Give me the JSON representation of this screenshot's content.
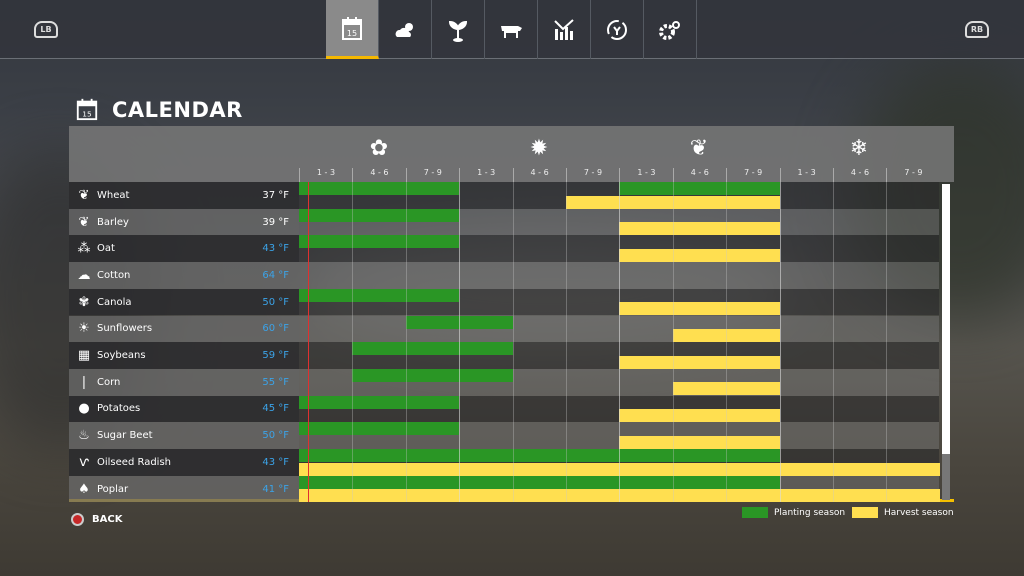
{
  "topbar": {
    "left_button": "LB",
    "right_button": "RB",
    "tabs": [
      {
        "icon": "calendar-icon",
        "label": "15",
        "active": true
      },
      {
        "icon": "weather-icon"
      },
      {
        "icon": "crops-icon"
      },
      {
        "icon": "animals-icon"
      },
      {
        "icon": "statistics-icon"
      },
      {
        "icon": "cycle-icon"
      },
      {
        "icon": "settings-icon"
      }
    ]
  },
  "page": {
    "title": "CALENDAR",
    "calendar_day": "15"
  },
  "seasons": [
    {
      "name": "spring",
      "icon": "flower-icon"
    },
    {
      "name": "summer",
      "icon": "sun-icon"
    },
    {
      "name": "autumn",
      "icon": "leaf-icon"
    },
    {
      "name": "winter",
      "icon": "snowflake-icon"
    }
  ],
  "periods": [
    "1 - 3",
    "4 - 6",
    "7 - 9",
    "1 - 3",
    "4 - 6",
    "7 - 9",
    "1 - 3",
    "4 - 6",
    "7 - 9",
    "1 - 3",
    "4 - 6",
    "7 - 9"
  ],
  "colors": {
    "planting": "#2a9625",
    "harvest": "#ffdf50",
    "accent": "#f5c000",
    "temp_blue": "#3ba3e8",
    "current_date": "#e03030"
  },
  "crops": [
    {
      "name": "Wheat",
      "temp": "37 °F",
      "temp_color": "white",
      "icon": "wheat-icon",
      "planting": [
        [
          0,
          2
        ],
        [
          6,
          8
        ]
      ],
      "harvest": [
        [
          5,
          8
        ]
      ]
    },
    {
      "name": "Barley",
      "temp": "39 °F",
      "temp_color": "white",
      "icon": "barley-icon",
      "planting": [
        [
          0,
          2
        ]
      ],
      "harvest": [
        [
          6,
          8
        ]
      ]
    },
    {
      "name": "Oat",
      "temp": "43 °F",
      "temp_color": "blue",
      "icon": "oat-icon",
      "planting": [
        [
          0,
          2
        ]
      ],
      "harvest": [
        [
          6,
          8
        ]
      ]
    },
    {
      "name": "Cotton",
      "temp": "64 °F",
      "temp_color": "blue",
      "icon": "cotton-icon",
      "planting": [],
      "harvest": []
    },
    {
      "name": "Canola",
      "temp": "50 °F",
      "temp_color": "blue",
      "icon": "canola-icon",
      "planting": [
        [
          0,
          2
        ]
      ],
      "harvest": [
        [
          6,
          8
        ]
      ]
    },
    {
      "name": "Sunflowers",
      "temp": "60 °F",
      "temp_color": "blue",
      "icon": "sunflower-icon",
      "planting": [
        [
          2,
          3
        ]
      ],
      "harvest": [
        [
          7,
          8
        ]
      ]
    },
    {
      "name": "Soybeans",
      "temp": "59 °F",
      "temp_color": "blue",
      "icon": "soybean-icon",
      "planting": [
        [
          1,
          3
        ]
      ],
      "harvest": [
        [
          6,
          8
        ]
      ]
    },
    {
      "name": "Corn",
      "temp": "55 °F",
      "temp_color": "blue",
      "icon": "corn-icon",
      "planting": [
        [
          1,
          3
        ]
      ],
      "harvest": [
        [
          7,
          8
        ]
      ]
    },
    {
      "name": "Potatoes",
      "temp": "45 °F",
      "temp_color": "blue",
      "icon": "potato-icon",
      "planting": [
        [
          0,
          2
        ]
      ],
      "harvest": [
        [
          6,
          8
        ]
      ]
    },
    {
      "name": "Sugar Beet",
      "temp": "50 °F",
      "temp_color": "blue",
      "icon": "sugarbeet-icon",
      "planting": [
        [
          0,
          2
        ]
      ],
      "harvest": [
        [
          6,
          8
        ]
      ]
    },
    {
      "name": "Oilseed Radish",
      "temp": "43 °F",
      "temp_color": "blue",
      "icon": "radish-icon",
      "planting": [
        [
          0,
          8
        ]
      ],
      "harvest": [
        [
          0,
          11
        ]
      ]
    },
    {
      "name": "Poplar",
      "temp": "41 °F",
      "temp_color": "blue",
      "icon": "poplar-icon",
      "planting": [
        [
          0,
          8
        ]
      ],
      "harvest": [
        [
          0,
          11
        ]
      ]
    }
  ],
  "current_date_period_fraction": 0.17,
  "scrollbar": {
    "position": 0,
    "visible_fraction": 0.85
  },
  "footer": {
    "back_label": "BACK"
  },
  "legend": {
    "planting": "Planting season",
    "harvest": "Harvest season"
  }
}
